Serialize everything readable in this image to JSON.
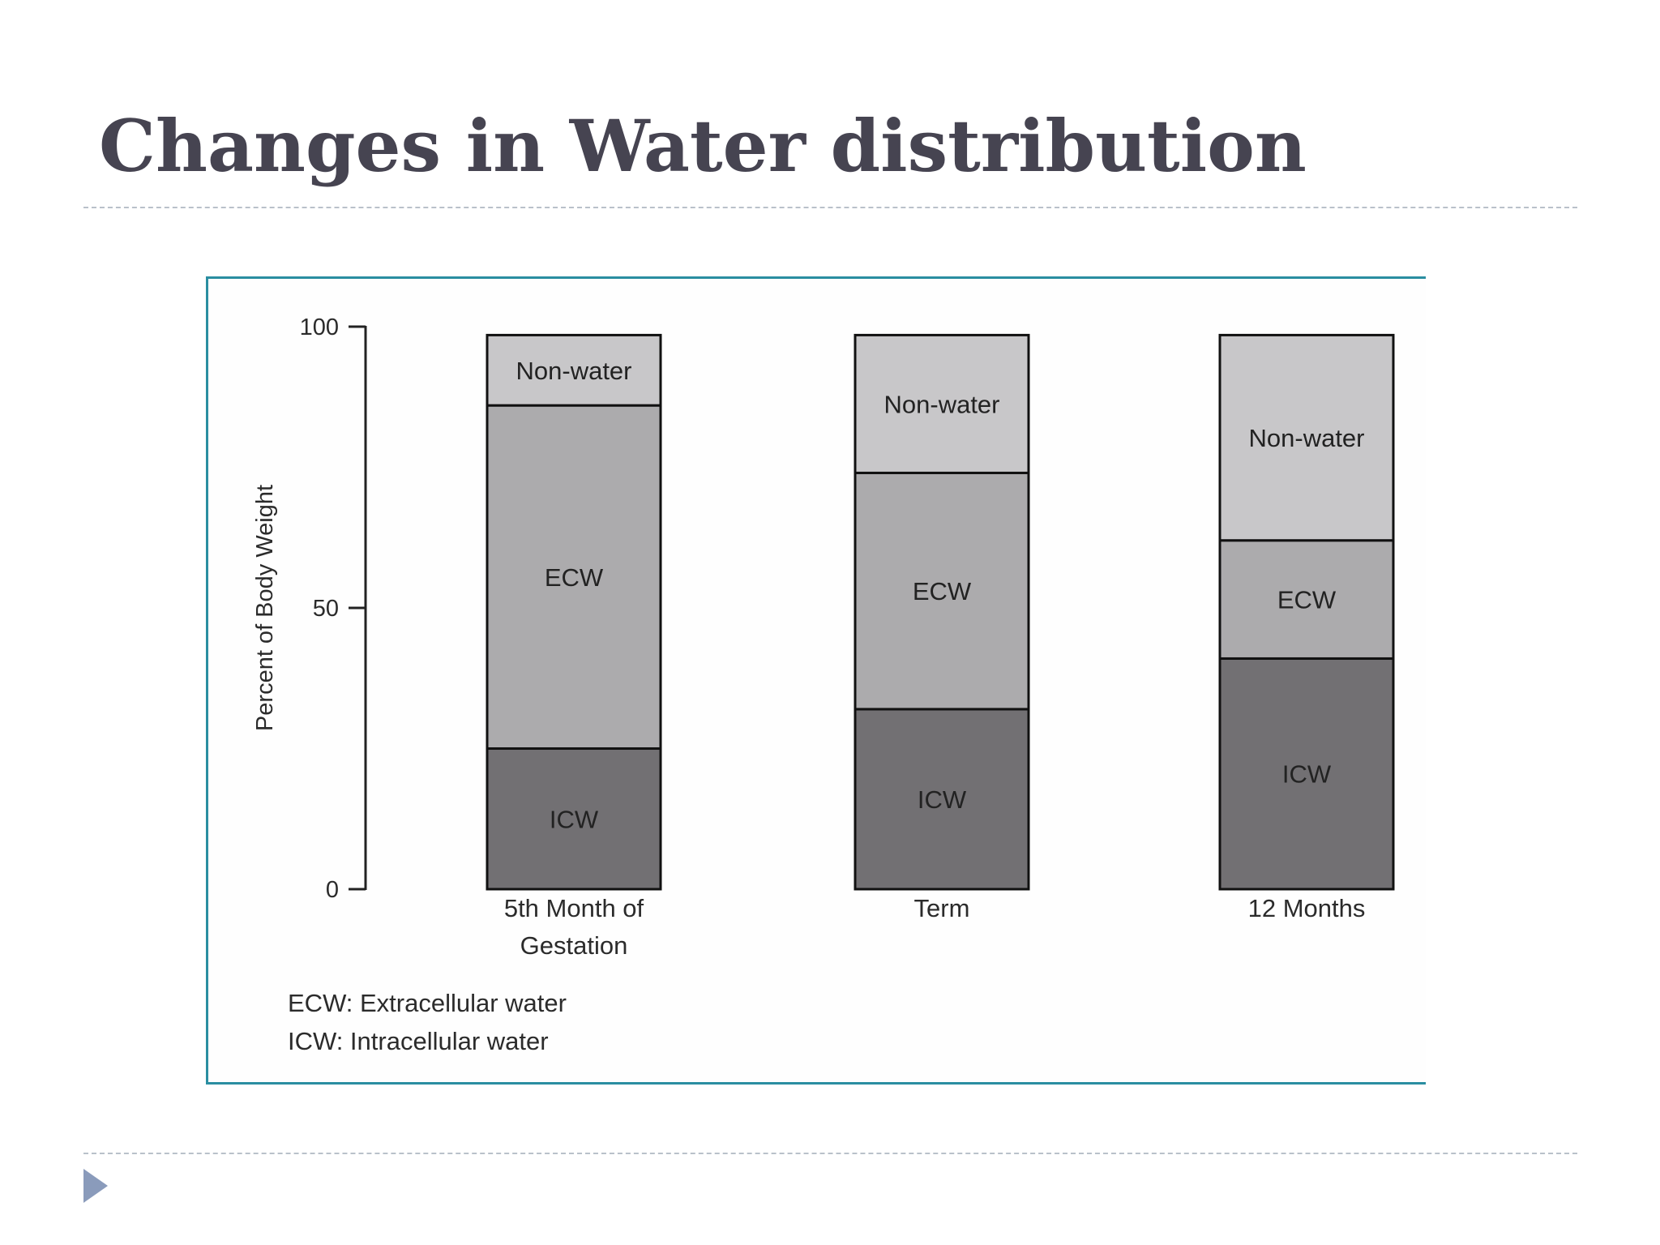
{
  "slide": {
    "title": "Changes in Water distribution"
  },
  "chart_data": {
    "type": "bar",
    "stacked": true,
    "ylabel": "Percent of Body Weight",
    "ylim": [
      0,
      100
    ],
    "yticks": [
      0,
      50,
      100
    ],
    "categories": [
      "5th Month of Gestation",
      "Term",
      "12 Months"
    ],
    "category_lines": [
      [
        "5th Month of",
        "Gestation"
      ],
      [
        "Term"
      ],
      [
        "12 Months"
      ]
    ],
    "series": [
      {
        "name": "ICW",
        "values": [
          25,
          32,
          41
        ],
        "color": "#727073"
      },
      {
        "name": "ECW",
        "values": [
          61,
          42,
          21
        ],
        "color": "#acabad"
      },
      {
        "name": "Non-water",
        "values": [
          12.5,
          24.5,
          36.5
        ],
        "color": "#c8c7c9"
      }
    ],
    "legend": [
      "ECW: Extracellular water",
      "ICW: Intracellular water"
    ],
    "legend_position": "bottom-left",
    "grid": false
  },
  "colors": {
    "title": "#464451",
    "frame": "#2a8ea1",
    "rule": "#b9c1ca",
    "bullet": "#8a9bbb"
  }
}
